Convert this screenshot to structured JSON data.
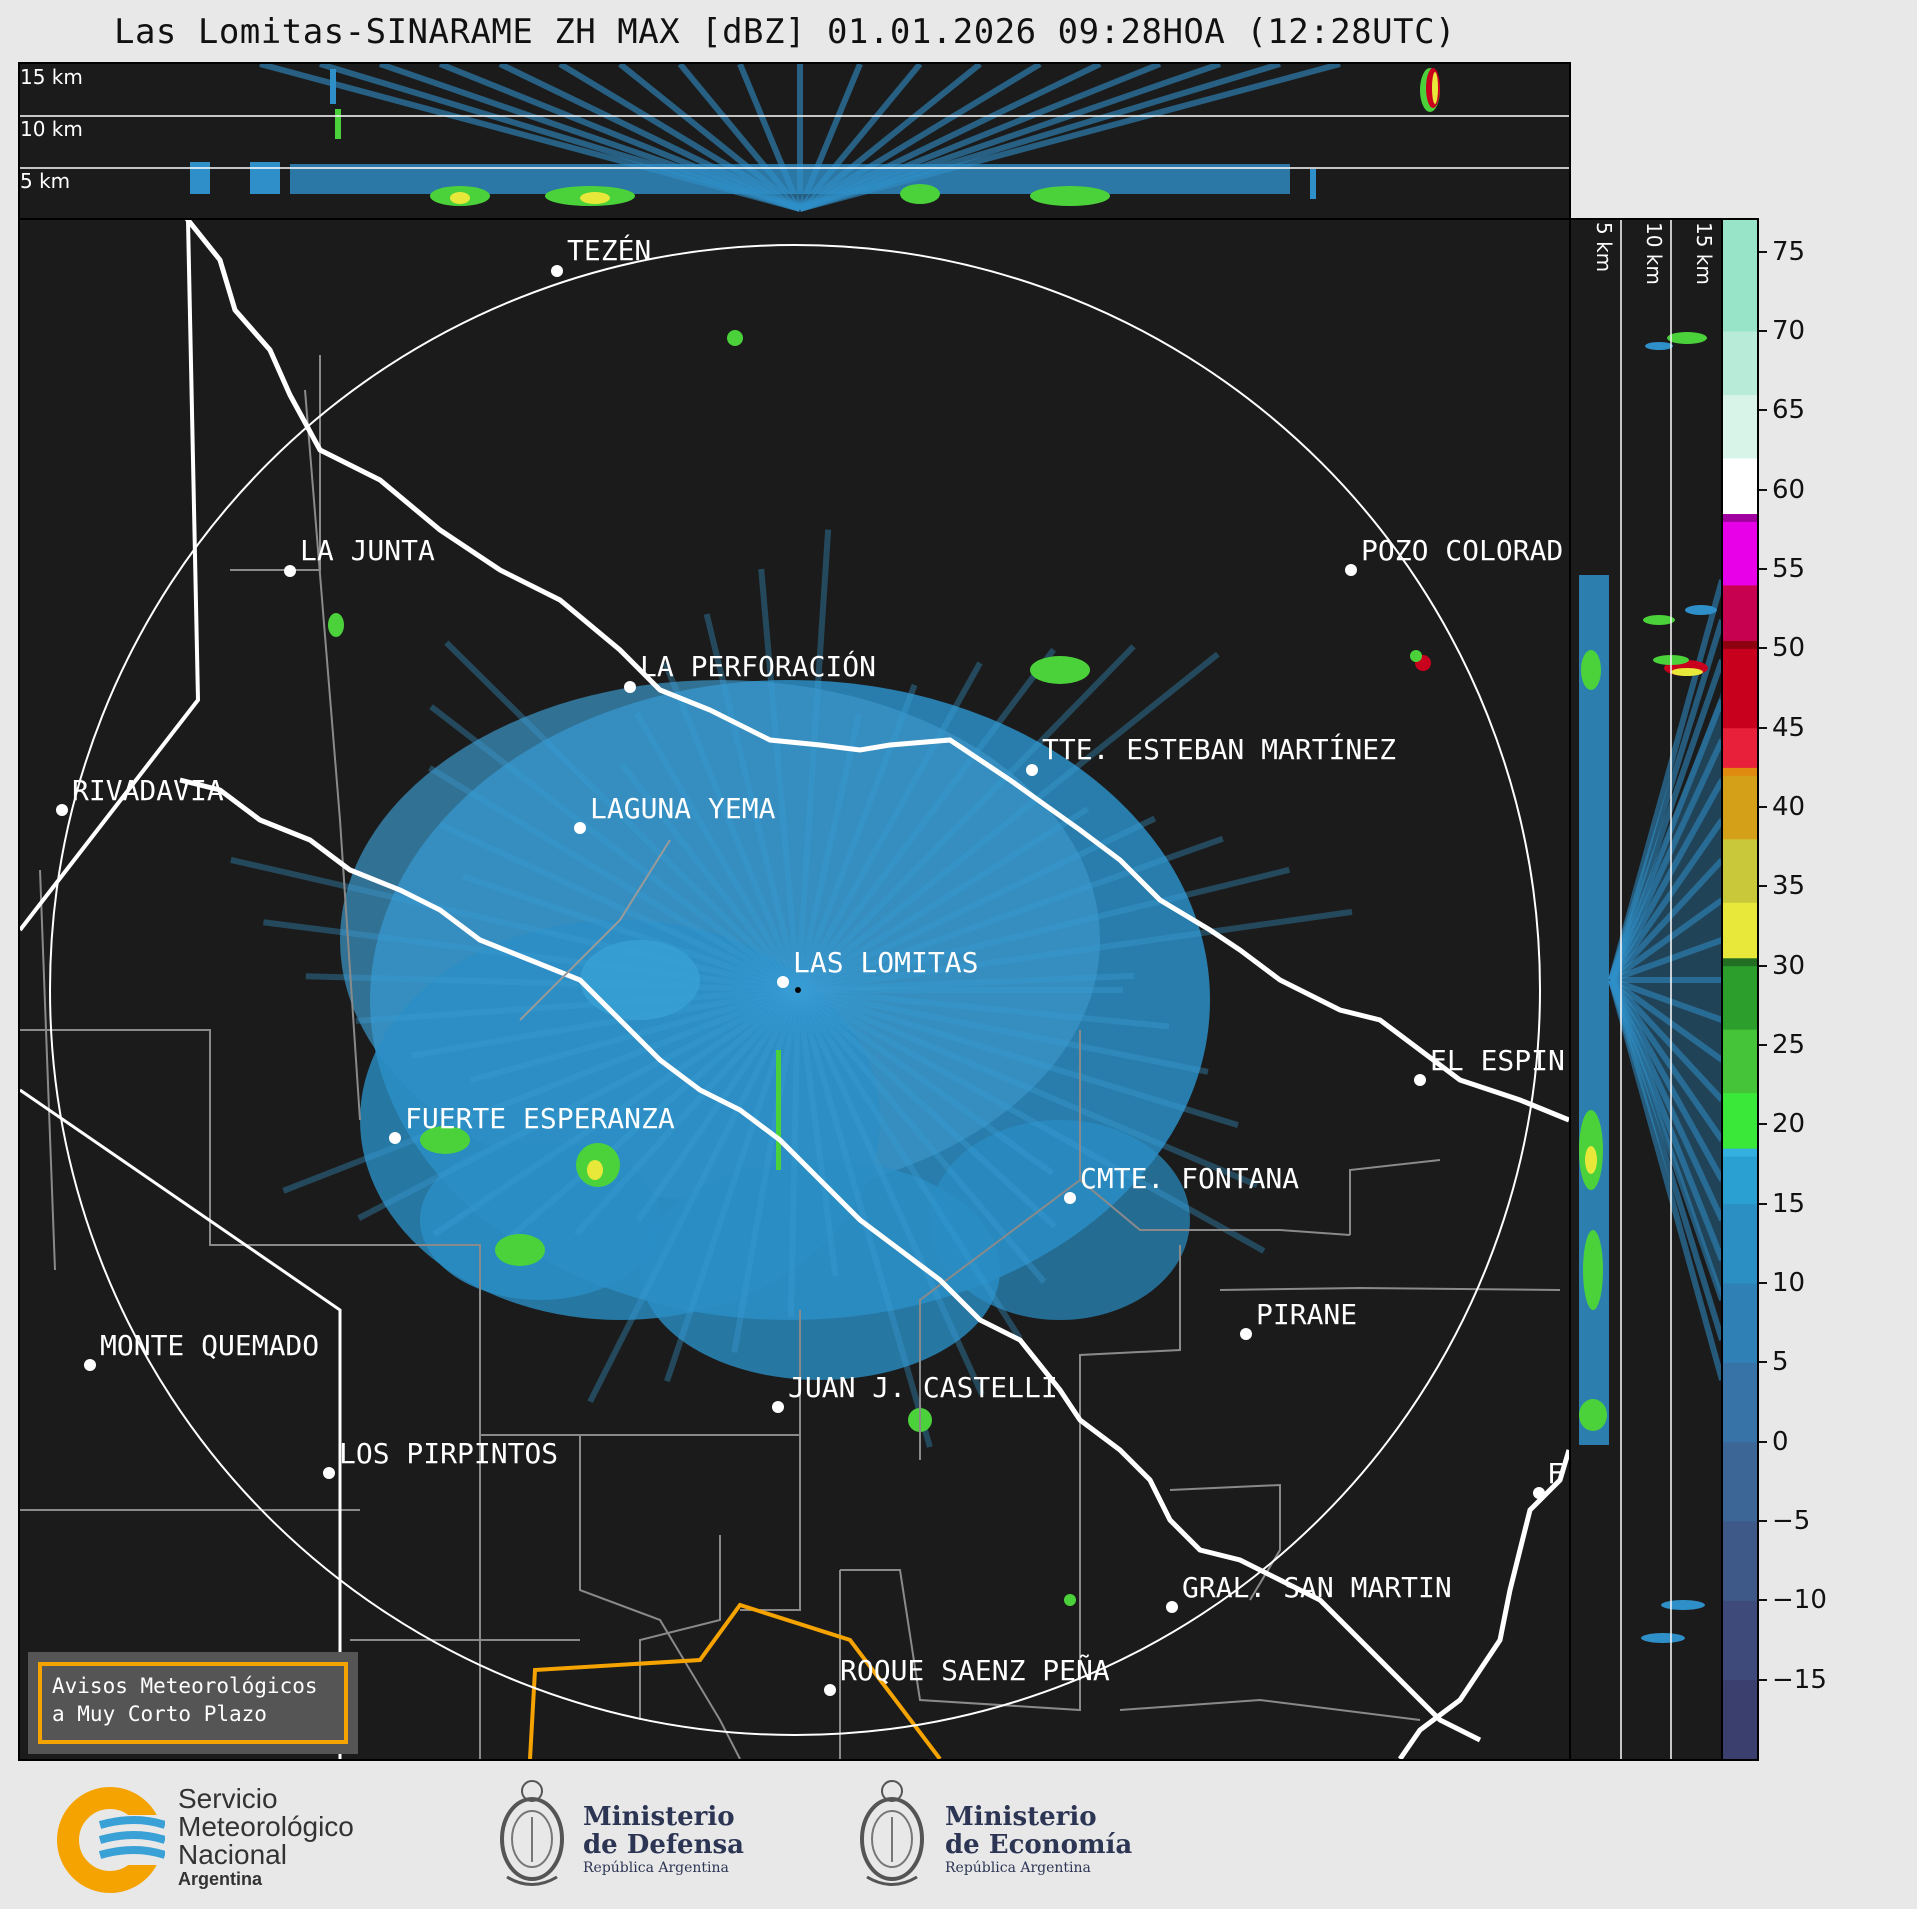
{
  "title": "Las Lomitas-SINARAME ZH MAX [dBZ] 01.01.2026 09:28HOA (12:28UTC)",
  "altitude_labels": [
    "15 km",
    "10 km",
    "5 km"
  ],
  "cities": [
    {
      "name": "TEZÉN"
    },
    {
      "name": "LA JUNTA"
    },
    {
      "name": "POZO COLORAD"
    },
    {
      "name": "LA PERFORACIÓN"
    },
    {
      "name": "TTE. ESTEBAN MARTÍNEZ"
    },
    {
      "name": "RIVADAVIA"
    },
    {
      "name": "LAGUNA YEMA"
    },
    {
      "name": "LAS LOMITAS"
    },
    {
      "name": "EL ESPIN"
    },
    {
      "name": "FUERTE ESPERANZA"
    },
    {
      "name": "CMTE. FONTANA"
    },
    {
      "name": "PIRANE"
    },
    {
      "name": "MONTE QUEMADO"
    },
    {
      "name": "JUAN J. CASTELLI"
    },
    {
      "name": "LOS PIRPINTOS"
    },
    {
      "name": "F"
    },
    {
      "name": "GRAL. SAN MARTIN"
    },
    {
      "name": "ROQUE SAENZ PEÑA"
    }
  ],
  "colorbar": {
    "ticks": [
      "75",
      "70",
      "65",
      "60",
      "55",
      "50",
      "45",
      "40",
      "35",
      "30",
      "25",
      "20",
      "15",
      "10",
      "5",
      "0",
      "−5",
      "−10",
      "−15"
    ]
  },
  "avisos": {
    "line1": "Avisos Meteorológicos",
    "line2": "a Muy Corto Plazo"
  },
  "footer": {
    "smn": {
      "line1": "Servicio",
      "line2": "Meteorológico",
      "line3": "Nacional",
      "line4": "Argentina"
    },
    "defensa": {
      "line1": "Ministerio",
      "line2": "de Defensa",
      "line3": "República Argentina"
    },
    "economia": {
      "line1": "Ministerio",
      "line2": "de Economía",
      "line3": "República Argentina"
    }
  }
}
